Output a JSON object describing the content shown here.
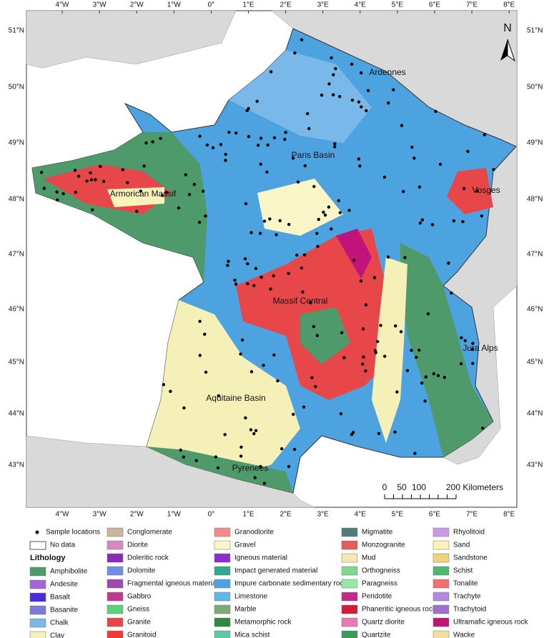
{
  "map": {
    "lon_ticks": [
      "4°W",
      "3°W",
      "2°W",
      "1°W",
      "0°",
      "1°E",
      "2°E",
      "3°E",
      "4°E",
      "5°E",
      "6°E",
      "7°E",
      "8°E"
    ],
    "lat_ticks": [
      "51°N",
      "50°N",
      "49°N",
      "48°N",
      "47°N",
      "46°N",
      "45°N",
      "44°N",
      "43°N"
    ],
    "regions": [
      "Ardennes",
      "Paris Basin",
      "Armorican Massif",
      "Vosges",
      "Massif Central",
      "Jura Alps",
      "Aquitaine Basin",
      "Pyrenees"
    ],
    "north": "N",
    "scale_labels": [
      "0",
      "50",
      "100",
      "200 Kilometers"
    ]
  },
  "legend": {
    "sample_locations": "Sample locations",
    "no_data": "No data",
    "title": "Lithology",
    "items": [
      {
        "label": "Amphibolite",
        "color": "#4e9a6a"
      },
      {
        "label": "Andesite",
        "color": "#a463d6"
      },
      {
        "label": "Basalt",
        "color": "#4b2ad9"
      },
      {
        "label": "Basanite",
        "color": "#7c79d8"
      },
      {
        "label": "Chalk",
        "color": "#79b8e8"
      },
      {
        "label": "Clay",
        "color": "#f5f0b8"
      },
      {
        "label": "Conglomerate",
        "color": "#c9b79c"
      },
      {
        "label": "Diorite",
        "color": "#d987c0"
      },
      {
        "label": "Doleritic rock",
        "color": "#8a2ab8"
      },
      {
        "label": "Dolomite",
        "color": "#6d8fe0"
      },
      {
        "label": "Fragmental igneous material",
        "color": "#9c4ab0"
      },
      {
        "label": "Gabbro",
        "color": "#c23a8e"
      },
      {
        "label": "Gneiss",
        "color": "#5ed07a"
      },
      {
        "label": "Granite",
        "color": "#e8474a"
      },
      {
        "label": "Granitoid",
        "color": "#f03a3a"
      },
      {
        "label": "Granodiorite",
        "color": "#f28c8c"
      },
      {
        "label": "Gravel",
        "color": "#fbf6c8"
      },
      {
        "label": "Igneous material",
        "color": "#8e2bd0"
      },
      {
        "label": "Impact generated material",
        "color": "#2faa8a"
      },
      {
        "label": "Impure carbonate sedimentary rock",
        "color": "#4da3e0"
      },
      {
        "label": "Limestone",
        "color": "#5fb8ea"
      },
      {
        "label": "Marble",
        "color": "#7fa87a"
      },
      {
        "label": "Metamorphic rock",
        "color": "#2f8a3f"
      },
      {
        "label": "Mica schist",
        "color": "#5fc8a0"
      },
      {
        "label": "Migmatite",
        "color": "#4e7f7a"
      },
      {
        "label": "Monzogranite",
        "color": "#e85a5a"
      },
      {
        "label": "Mud",
        "color": "#f8e6b0"
      },
      {
        "label": "Orthogneiss",
        "color": "#7ed88e"
      },
      {
        "label": "Paragneiss",
        "color": "#9ae8a8"
      },
      {
        "label": "Peridotite",
        "color": "#c8288a"
      },
      {
        "label": "Phaneritic igneous rock",
        "color": "#d81a3a"
      },
      {
        "label": "Quartz diorite",
        "color": "#e87ab0"
      },
      {
        "label": "Quartzite",
        "color": "#3f9a5a"
      },
      {
        "label": "Rhyolitoid",
        "color": "#c79ae8"
      },
      {
        "label": "Sand",
        "color": "#fbf3b8"
      },
      {
        "label": "Sandstone",
        "color": "#f0d27a"
      },
      {
        "label": "Schist",
        "color": "#4fb870"
      },
      {
        "label": "Tonalite",
        "color": "#f07070"
      },
      {
        "label": "Trachyte",
        "color": "#b08ae0"
      },
      {
        "label": "Trachytoid",
        "color": "#a070d0"
      },
      {
        "label": "Ultramafic igneous rock",
        "color": "#c0147a"
      },
      {
        "label": "Wacke",
        "color": "#f0e0a0"
      }
    ]
  }
}
